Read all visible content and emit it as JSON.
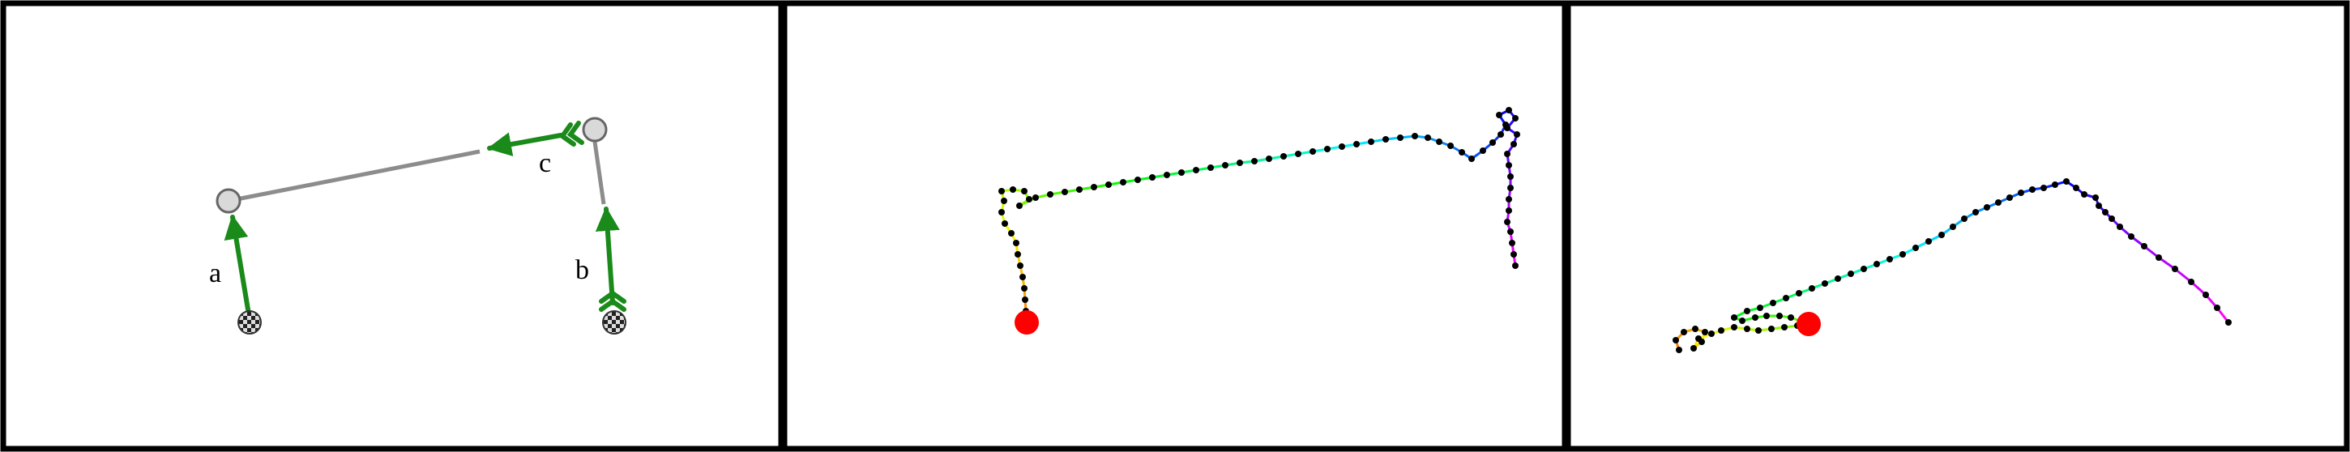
{
  "panels": [
    {
      "id": "mechanism",
      "labels": [
        {
          "id": "a",
          "text": "a"
        },
        {
          "id": "b",
          "text": "b"
        },
        {
          "id": "c",
          "text": "c"
        }
      ],
      "colors": {
        "bar": "#8c8c8c",
        "vector": "#1a8a1a",
        "joint": "#d9d9d9"
      }
    },
    {
      "id": "chain-vertical",
      "colors": {
        "base": "#ff0000",
        "points": "#000000"
      }
    },
    {
      "id": "chain-folded",
      "colors": {
        "base": "#ff0000",
        "points": "#000000"
      }
    }
  ]
}
